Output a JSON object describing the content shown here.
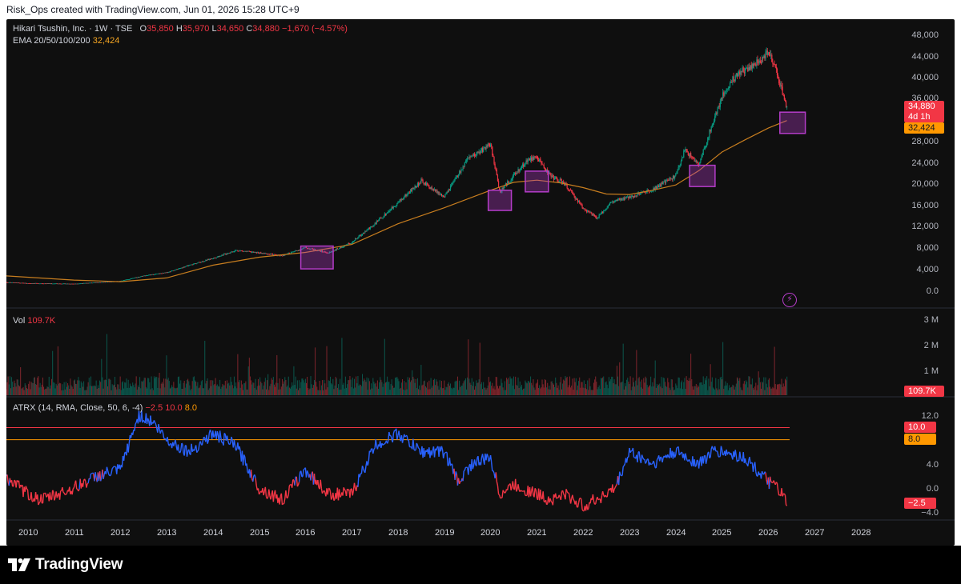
{
  "header": {
    "text": "Risk_Ops created with TradingView.com, Jun 01, 2026 15:28 UTC+9"
  },
  "symbol_legend": {
    "name": "Hikari Tsushin, Inc. · 1W · TSE",
    "o_label": "O",
    "o_value": "35,850",
    "h_label": "H",
    "h_value": "35,970",
    "l_label": "L",
    "l_value": "34,650",
    "c_label": "C",
    "c_value": "34,880",
    "change": "−1,670 (−4.57%)"
  },
  "ema_legend": {
    "label": "EMA 20/50/100/200",
    "value": "32,424"
  },
  "vol_legend": {
    "label": "Vol",
    "value": "109.7K"
  },
  "atrx_legend": {
    "label": "ATRX (14, RMA, Close, 50, 6, -4)",
    "v1": "−2.5",
    "v2": "10.0",
    "v3": "8.0"
  },
  "price_axis": [
    "48,000",
    "44,000",
    "40,000",
    "36,000",
    "28,000",
    "24,000",
    "20,000",
    "16,000",
    "12,000",
    "8,000",
    "4,000",
    "0.0"
  ],
  "price_tags": {
    "last_price": "34,880",
    "countdown": "4d 1h",
    "ema_value": "32,424"
  },
  "volume_axis": [
    "3 M",
    "2 M",
    "1 M"
  ],
  "volume_tag": "109.7K",
  "atrx_axis": [
    "12.0",
    "4.0",
    "0.0",
    "−4.0"
  ],
  "atrx_tags": [
    "10.0",
    "8.0",
    "−2.5"
  ],
  "time_axis": [
    "2010",
    "2011",
    "2012",
    "2013",
    "2014",
    "2015",
    "2016",
    "2017",
    "2018",
    "2019",
    "2020",
    "2021",
    "2022",
    "2023",
    "2024",
    "2025",
    "2026",
    "2027",
    "2028"
  ],
  "colors": {
    "background": "#0f0f0f",
    "up_candle": "#089981",
    "down_candle": "#f23645",
    "ema_line": "#c77d1f",
    "highlight_box": "#b43cc8",
    "atrx_up": "#2962ff",
    "atrx_down": "#f23645",
    "level_10": "#f23645",
    "level_8": "#ff9800"
  },
  "branding": {
    "logo": "TradingView"
  },
  "chart_data": {
    "type": "candlestick",
    "interval": "1W",
    "price_series": {
      "name": "Hikari Tsushin, Inc.",
      "x": [
        2009.5,
        2010,
        2011,
        2012,
        2012.5,
        2013,
        2013.5,
        2014,
        2014.5,
        2015,
        2015.5,
        2016,
        2016.5,
        2017,
        2017.5,
        2018,
        2018.5,
        2019,
        2019.5,
        2020,
        2020.2,
        2020.5,
        2020.8,
        2021,
        2021.3,
        2021.6,
        2022,
        2022.3,
        2022.6,
        2023,
        2023.5,
        2024,
        2024.2,
        2024.5,
        2024.8,
        2025,
        2025.3,
        2025.6,
        2025.9,
        2026,
        2026.2,
        2026.4
      ],
      "y": [
        2000,
        1800,
        1700,
        2200,
        3200,
        3800,
        5200,
        6500,
        8000,
        7500,
        7000,
        8500,
        7500,
        9500,
        13000,
        17000,
        21000,
        18000,
        25000,
        28000,
        19000,
        22000,
        25000,
        25500,
        22000,
        20500,
        16000,
        14000,
        17000,
        18000,
        19500,
        22000,
        27000,
        24000,
        32000,
        37000,
        41000,
        42500,
        44000,
        45500,
        41000,
        34880
      ]
    },
    "ema_series": {
      "x": [
        2009.5,
        2011,
        2012,
        2013,
        2014,
        2015,
        2016,
        2017,
        2018,
        2019,
        2020,
        2020.5,
        2021,
        2021.5,
        2022,
        2022.5,
        2023,
        2023.5,
        2024,
        2024.5,
        2025,
        2025.5,
        2026,
        2026.4
      ],
      "y": [
        3200,
        2400,
        2100,
        2800,
        5200,
        6700,
        7600,
        9100,
        13000,
        16000,
        19300,
        20800,
        21200,
        20700,
        19800,
        18600,
        18500,
        19300,
        20300,
        23000,
        26500,
        28800,
        31000,
        32424
      ]
    },
    "highlight_zones": [
      {
        "x": [
          2015.9,
          2016.6
        ],
        "y": [
          4500,
          8800
        ]
      },
      {
        "x": [
          2019.95,
          2020.45
        ],
        "y": [
          15500,
          19300
        ]
      },
      {
        "x": [
          2020.75,
          2021.25
        ],
        "y": [
          19000,
          22900
        ]
      },
      {
        "x": [
          2024.3,
          2024.85
        ],
        "y": [
          20000,
          24000
        ]
      },
      {
        "x": [
          2026.25,
          2026.8
        ],
        "y": [
          30000,
          34000
        ]
      }
    ],
    "volume": {
      "name": "Vol",
      "y_range": [
        0,
        3000000
      ],
      "last": 109700
    },
    "atrx": {
      "name": "ATRX",
      "params": "14, RMA, Close, 50, 6, -4",
      "levels": [
        10,
        8
      ],
      "y_range": [
        -4,
        12
      ],
      "x": [
        2009.5,
        2010,
        2010.3,
        2011,
        2011.5,
        2012,
        2012.4,
        2012.7,
        2013,
        2013.5,
        2014,
        2014.5,
        2015,
        2015.5,
        2016,
        2016.5,
        2017,
        2017.5,
        2018,
        2018.5,
        2019,
        2019.3,
        2019.6,
        2020,
        2020.2,
        2020.5,
        2021,
        2021.3,
        2021.6,
        2022,
        2022.5,
        2022.7,
        2023,
        2023.5,
        2024,
        2024.5,
        2024.8,
        2025,
        2025.5,
        2026,
        2026.2,
        2026.4
      ],
      "y": [
        2,
        -1,
        -2,
        0,
        2,
        3,
        12,
        11,
        8,
        6,
        9,
        7,
        0,
        -2,
        3,
        -1,
        -1,
        7,
        9,
        6,
        6,
        1,
        4,
        5,
        -1,
        0.5,
        -1,
        -2,
        -1,
        -3,
        -1,
        0,
        6,
        4,
        6,
        4,
        6,
        6,
        5,
        1,
        0,
        -2.5
      ]
    },
    "ylim": [
      0,
      48000
    ]
  }
}
